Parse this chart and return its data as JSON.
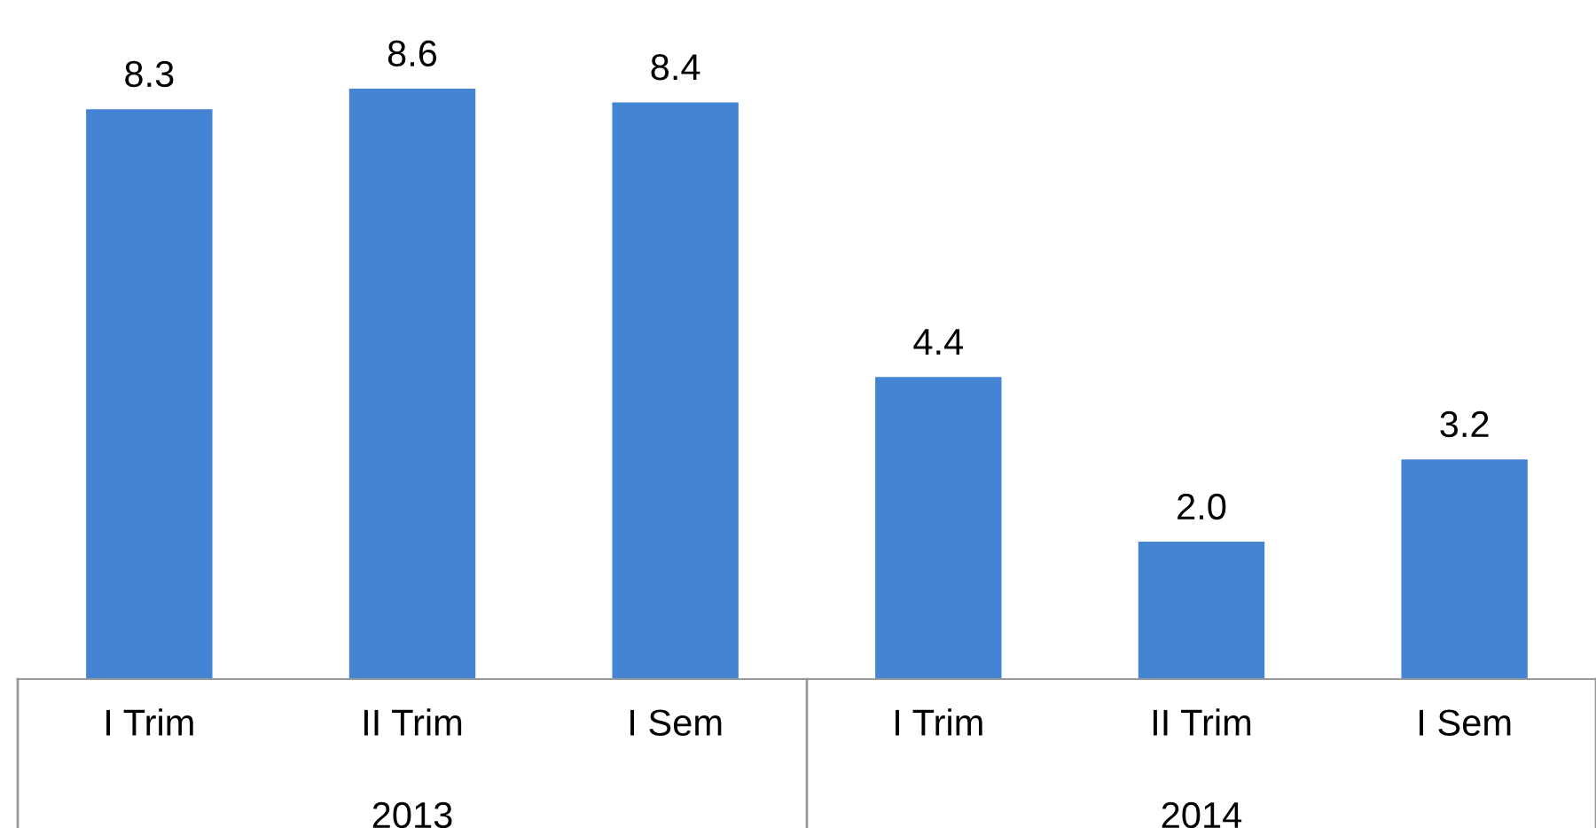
{
  "chart_data": {
    "type": "bar",
    "categories": [
      "I Trim",
      "II Trim",
      "I Sem",
      "I Trim",
      "II Trim",
      "I Sem"
    ],
    "values": [
      8.3,
      8.6,
      8.4,
      4.4,
      2.0,
      3.2
    ],
    "color": "#4583d3",
    "value_labels": [
      "8.3",
      "8.6",
      "8.4",
      "4.4",
      "2.0",
      "3.2"
    ],
    "tick_labels": "x",
    "grid": false,
    "annotations": [
      "2013",
      "2014"
    ]
  }
}
